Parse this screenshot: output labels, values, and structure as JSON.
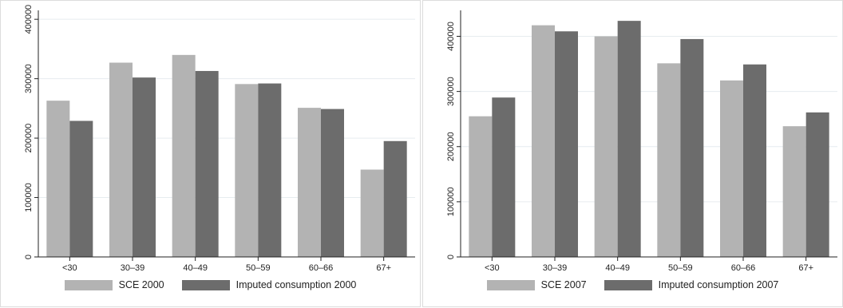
{
  "colors": {
    "sce": "#b3b3b3",
    "imputed": "#6c6c6c",
    "grid": "#e6ecef",
    "axis": "#222222"
  },
  "chart_data": [
    {
      "type": "bar",
      "categories": [
        "<30",
        "30–39",
        "40–49",
        "50–59",
        "60–66",
        "67+"
      ],
      "series": [
        {
          "name": "SCE 2000",
          "values": [
            263000,
            327000,
            340000,
            291000,
            251000,
            147000
          ]
        },
        {
          "name": "Imputed consumption 2000",
          "values": [
            229000,
            302000,
            313000,
            292000,
            249000,
            195000
          ]
        }
      ],
      "yticks": [
        "0",
        "100000",
        "200000",
        "300000",
        "400000"
      ],
      "ytick_values": [
        0,
        100000,
        200000,
        300000,
        400000
      ],
      "ylim": [
        0,
        415000
      ],
      "grid": true,
      "legend_position": "bottom"
    },
    {
      "type": "bar",
      "categories": [
        "<30",
        "30–39",
        "40–49",
        "50–59",
        "60–66",
        "67+"
      ],
      "series": [
        {
          "name": "SCE 2007",
          "values": [
            255000,
            420000,
            400000,
            351000,
            320000,
            237000
          ]
        },
        {
          "name": "Imputed consumption 2007",
          "values": [
            289000,
            409000,
            428000,
            395000,
            349000,
            262000
          ]
        }
      ],
      "yticks": [
        "0",
        "100000",
        "200000",
        "300000",
        "400000"
      ],
      "ytick_values": [
        0,
        100000,
        200000,
        300000,
        400000
      ],
      "ylim": [
        0,
        447000
      ],
      "grid": true,
      "legend_position": "bottom"
    }
  ]
}
